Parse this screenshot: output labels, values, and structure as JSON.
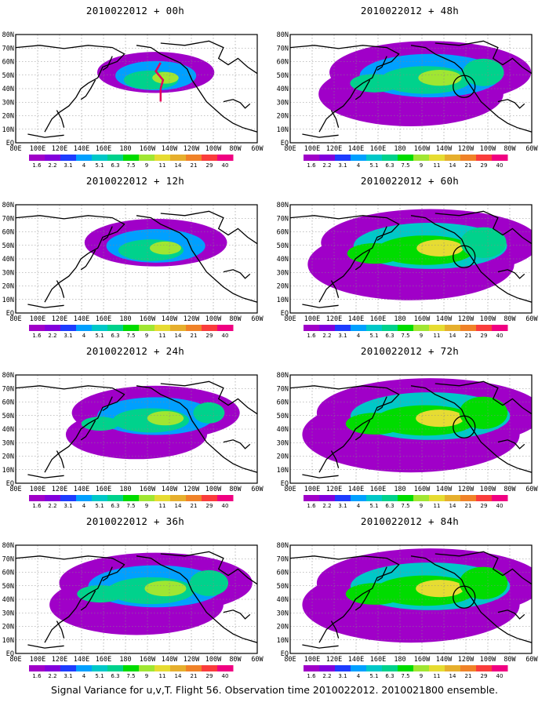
{
  "panels": [
    {
      "title": "2010022012 + 00h",
      "col": 0,
      "row": 0,
      "intensity": 0.35,
      "spread": 0.35,
      "flight_track": true,
      "circle": false
    },
    {
      "title": "2010022012 + 12h",
      "col": 0,
      "row": 1,
      "intensity": 0.55,
      "spread": 0.5,
      "flight_track": false,
      "circle": false
    },
    {
      "title": "2010022012 + 24h",
      "col": 0,
      "row": 2,
      "intensity": 0.65,
      "spread": 0.65,
      "flight_track": false,
      "circle": false
    },
    {
      "title": "2010022012 + 36h",
      "col": 0,
      "row": 3,
      "intensity": 0.7,
      "spread": 0.8,
      "flight_track": false,
      "circle": false
    },
    {
      "title": "2010022012 + 48h",
      "col": 1,
      "row": 0,
      "intensity": 0.7,
      "spread": 0.85,
      "flight_track": false,
      "circle": true
    },
    {
      "title": "2010022012 + 60h",
      "col": 1,
      "row": 1,
      "intensity": 0.8,
      "spread": 0.95,
      "flight_track": false,
      "circle": true
    },
    {
      "title": "2010022012 + 72h",
      "col": 1,
      "row": 2,
      "intensity": 0.85,
      "spread": 1.0,
      "flight_track": false,
      "circle": true
    },
    {
      "title": "2010022012 + 84h",
      "col": 1,
      "row": 3,
      "intensity": 0.9,
      "spread": 1.0,
      "flight_track": false,
      "circle": true
    }
  ],
  "lon_labels": [
    "80E",
    "100E",
    "120E",
    "140E",
    "160E",
    "180",
    "160W",
    "140W",
    "120W",
    "100W",
    "80W",
    "60W"
  ],
  "lat_labels": [
    "80N",
    "70N",
    "60N",
    "50N",
    "40N",
    "30N",
    "20N",
    "10N",
    "EQ"
  ],
  "colorbar": {
    "labels": [
      "1.6",
      "2.2",
      "3.1",
      "4",
      "5.1",
      "6.3",
      "7.5",
      "9",
      "11",
      "14",
      "21",
      "29",
      "40"
    ],
    "colors": [
      "#a000c8",
      "#8200dc",
      "#1e3cff",
      "#00a0ff",
      "#00c8c8",
      "#00d28c",
      "#00dc00",
      "#a0e632",
      "#e6dc32",
      "#e6af2d",
      "#f08228",
      "#fa3c3c",
      "#f00082"
    ]
  },
  "footer": "Signal Variance for u,v,T. Flight 56. Observation time 2010022012. 2010021800 ensemble."
}
